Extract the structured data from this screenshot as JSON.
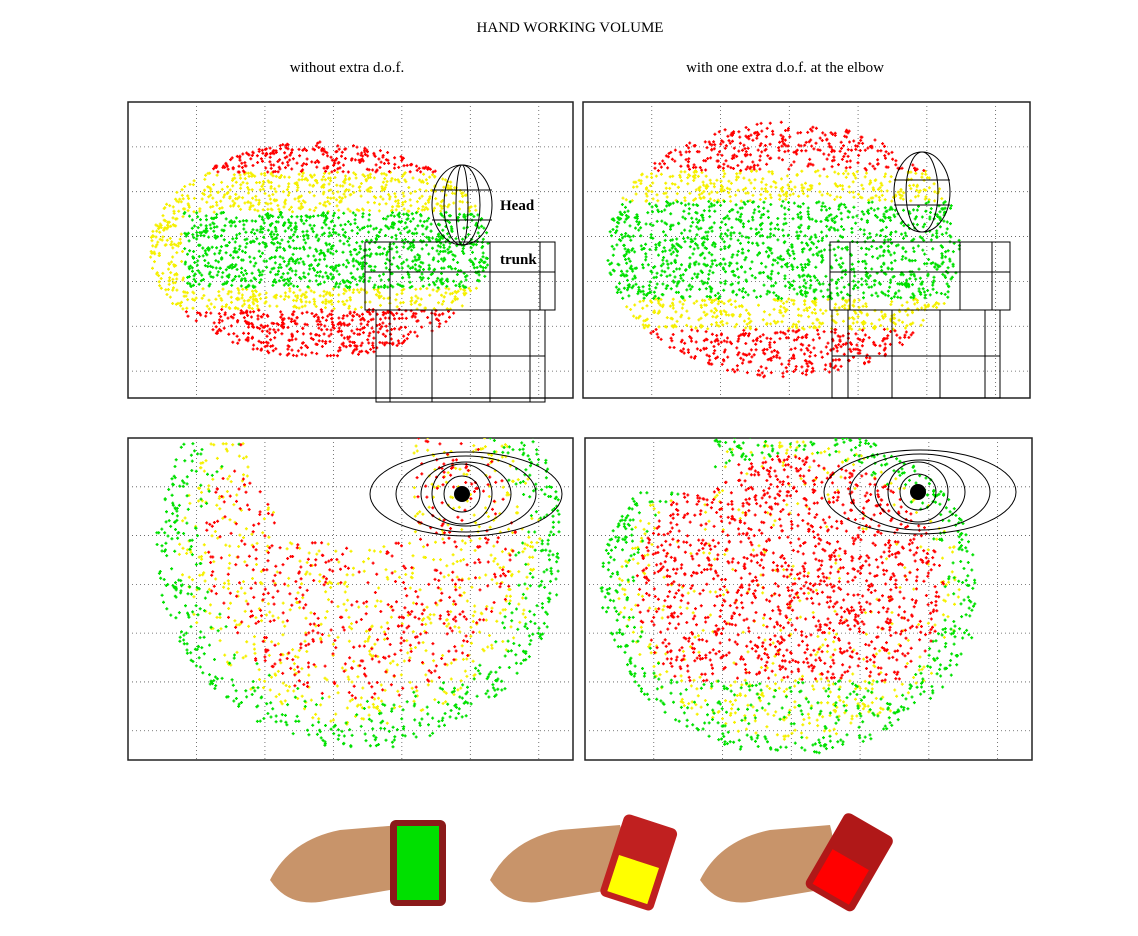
{
  "title": "HAND WORKING VOLUME",
  "columns": [
    "without extra d.o.f.",
    "with one extra d.o.f. at the elbow"
  ],
  "labels": {
    "head": "Head",
    "trunk": "trunk"
  }
}
